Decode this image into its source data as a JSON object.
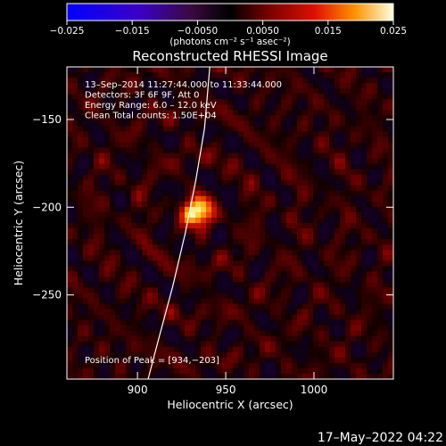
{
  "chart_data": {
    "type": "heatmap",
    "title": "Reconstructed RHESSI Image",
    "xlabel": "Heliocentric X (arcsec)",
    "ylabel": "Heliocentric Y (arcsec)",
    "xlim": [
      860,
      1045
    ],
    "ylim": [
      -298,
      -120
    ],
    "x_ticks": [
      900,
      950,
      1000
    ],
    "x_tick_labels": [
      "900",
      "950",
      "1000"
    ],
    "y_ticks": [
      -150,
      -200,
      -250
    ],
    "y_tick_labels": [
      "−150",
      "−200",
      "−250"
    ],
    "colorbar": {
      "range": [
        -0.025,
        0.025
      ],
      "ticks": [
        -0.025,
        -0.015,
        -0.005,
        0.005,
        0.015,
        0.025
      ],
      "tick_labels": [
        "−0.025",
        "−0.015",
        "−0.0050",
        "0.0050",
        "0.015",
        "0.025"
      ],
      "unit_label": "(photons cm⁻² s⁻¹ asec⁻²)"
    },
    "info_lines": [
      "13–Sep–2014 11:27:44.000 to 11:33:44.000",
      "Detectors: 3F 6F 9F, Att 0",
      "Energy Range: 6.0 – 12.0 keV",
      "Clean     Total counts: 1.50E+04"
    ],
    "peak_label": "Position of Peak = [934,−203]",
    "peak": {
      "x": 934,
      "y": -203,
      "value": 0.025
    },
    "limb": [
      [
        906,
        -298
      ],
      [
        912,
        -275
      ],
      [
        920,
        -245
      ],
      [
        927,
        -215
      ],
      [
        933,
        -185
      ],
      [
        938,
        -155
      ],
      [
        941,
        -120
      ]
    ],
    "colors": {
      "background": "#000000",
      "text": "#ffffff",
      "limb": "#ffffff"
    }
  },
  "footer": {
    "date_label": "17–May–2022 04:22"
  }
}
